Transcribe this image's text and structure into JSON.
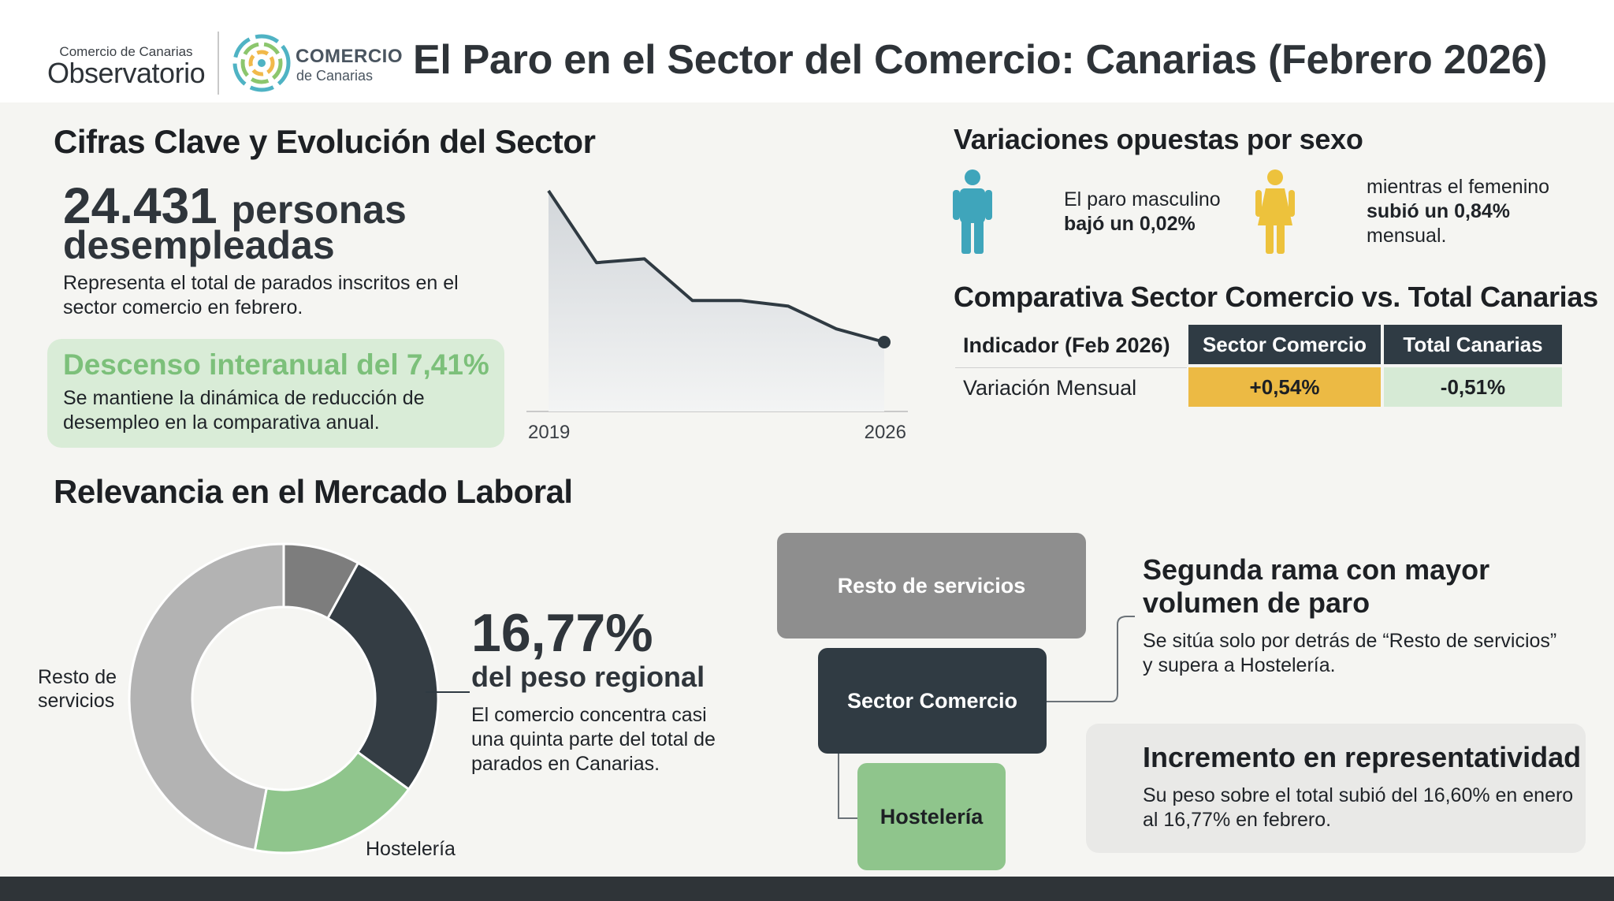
{
  "header": {
    "brand_small": "Comercio de Canarias",
    "brand_big": "Observatorio",
    "logo_word1": "COMERCIO",
    "logo_word2": "de Canarias",
    "title": "El Paro en el Sector del Comercio: Canarias (Febrero 2026)"
  },
  "key_figures": {
    "heading": "Cifras Clave y Evolución del Sector",
    "number": "24.431",
    "unit": "personas",
    "unit_line2": "desempleadas",
    "desc_line1": "Representa el total de parados inscritos en el",
    "desc_line2": "sector comercio en febrero.",
    "callout_title": "Descenso interanual del 7,41%",
    "callout_line1": "Se mantiene la dinámica de reducción de",
    "callout_line2": "desempleo en la comparativa anual."
  },
  "trend": {
    "x_start_label": "2019",
    "x_end_label": "2026",
    "relative_levels": [
      1.0,
      0.62,
      0.64,
      0.42,
      0.42,
      0.39,
      0.27,
      0.2
    ]
  },
  "gender": {
    "heading": "Variaciones opuestas por sexo",
    "male_line1": "El paro masculino",
    "male_line2": "bajó un 0,02%",
    "female_line1": "mientras el femenino",
    "female_line2": "subió un 0,84%",
    "female_line3": "mensual.",
    "male_color": "#3fa5bb",
    "female_color": "#edc23c"
  },
  "comparison": {
    "heading": "Comparativa Sector Comercio vs. Total Canarias",
    "col_indicator": "Indicador (Feb 2026)",
    "col_sector": "Sector Comercio",
    "col_total": "Total Canarias",
    "row_label": "Variación Mensual",
    "row_sector": "+0,54%",
    "row_total": "-0,51%",
    "sector_cell_color": "#ecba44",
    "total_cell_color": "#d6ead5"
  },
  "relevance": {
    "heading": "Relevancia en el Mercado Laboral",
    "donut_label_resto_1": "Resto de",
    "donut_label_resto_2": "servicios",
    "donut_label_hosteleria": "Hostelería",
    "big_pct": "16,77%",
    "big_sub": "del peso regional",
    "desc_line1": "El comercio concentra casi",
    "desc_line2": "una quinta parte del total de",
    "desc_line3": "parados en Canarias.",
    "segments": [
      {
        "value": 0.08,
        "color": "#7d7d7d"
      },
      {
        "value": 0.27,
        "color": "#343d44"
      },
      {
        "value": 0.18,
        "color": "#8fc58c"
      },
      {
        "value": 0.47,
        "color": "#b3b3b3"
      }
    ]
  },
  "ranking": {
    "box_resto": "Resto de servicios",
    "box_comercio": "Sector Comercio",
    "box_hosteleria": "Hostelería",
    "second_title_1": "Segunda rama con mayor",
    "second_title_2": "volumen de paro",
    "second_desc_1": "Se sitúa solo por detrás de “Resto de servicios”",
    "second_desc_2": "y supera a Hostelería.",
    "incr_title": "Incremento en representatividad",
    "incr_desc_1": "Su peso sobre el total subió del 16,60% en enero",
    "incr_desc_2": "al 16,77% en febrero."
  }
}
